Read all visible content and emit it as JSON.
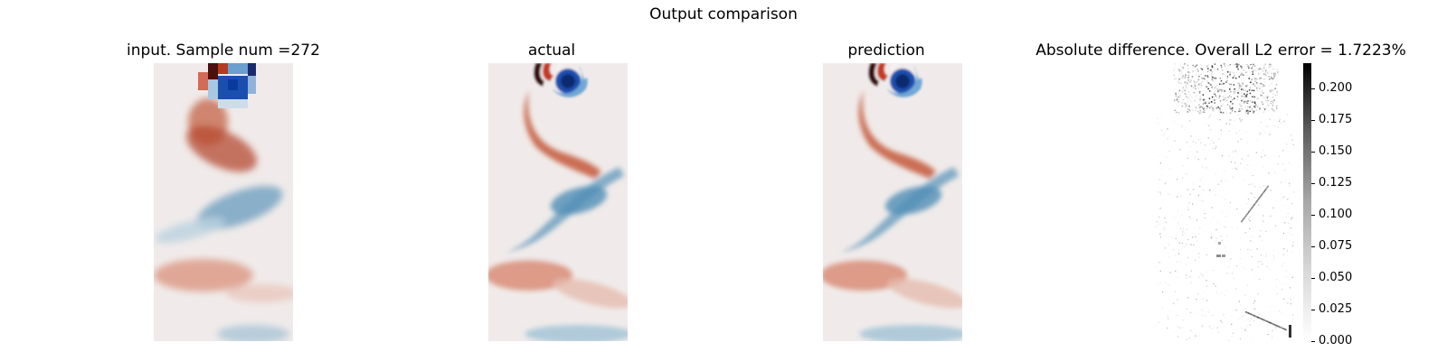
{
  "figure": {
    "title": "Output comparison"
  },
  "chart_data": [
    {
      "type": "heatmap",
      "title": "input. Sample num =272",
      "colormap": "diverging-red-white-blue",
      "colors": {
        "positive": "#b53a24",
        "mid": "#f0ebea",
        "negative": "#1a4fb0",
        "dark_positive": "#4a0f0f",
        "dark_negative": "#0a2a6e"
      },
      "resolution": "coarse",
      "description_of_field": "vortex street: alternating red/blue vortices descending from top"
    },
    {
      "type": "heatmap",
      "title": "actual",
      "colormap": "diverging-red-white-blue",
      "colors": {
        "positive": "#b53a24",
        "mid": "#f0ebea",
        "negative": "#1a4fb0",
        "dark_positive": "#4a0f0f",
        "dark_negative": "#0a2a6e"
      },
      "resolution": "fine"
    },
    {
      "type": "heatmap",
      "title": "prediction",
      "colormap": "diverging-red-white-blue",
      "colors": {
        "positive": "#b53a24",
        "mid": "#f0ebea",
        "negative": "#1a4fb0",
        "dark_positive": "#4a0f0f",
        "dark_negative": "#0a2a6e"
      },
      "resolution": "fine"
    },
    {
      "type": "heatmap",
      "title": "Absolute difference. Overall L2 error = 1.7223%",
      "colormap": "gray_r",
      "colorbar": {
        "range": [
          0.0,
          0.22
        ],
        "ticks": [
          0.0,
          0.025,
          0.05,
          0.075,
          0.1,
          0.125,
          0.15,
          0.175,
          0.2
        ],
        "tick_labels": [
          "0.000",
          "0.025",
          "0.050",
          "0.075",
          "0.100",
          "0.125",
          "0.150",
          "0.175",
          "0.200"
        ]
      }
    }
  ]
}
